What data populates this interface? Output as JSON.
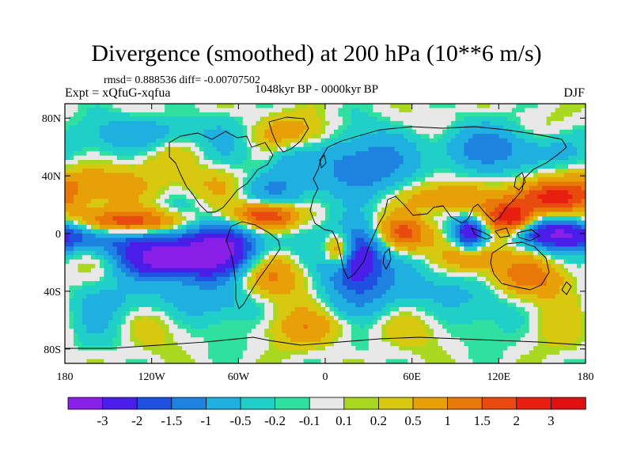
{
  "chart_data": {
    "type": "heatmap",
    "title": "Divergence (smoothed) at 200 hPa (10**6 m/s)",
    "rmsd_text": "rmsd= 0.888536 diff= -0.00707502",
    "experiment": "Expt = xQfuG-xqfua",
    "period": "1048kyr BP - 0000kyr BP",
    "season": "DJF",
    "x_range": [
      -180,
      180
    ],
    "y_range": [
      -90,
      90
    ],
    "x_ticks": [
      {
        "value": -180,
        "label": "180"
      },
      {
        "value": -120,
        "label": "120W"
      },
      {
        "value": -60,
        "label": "60W"
      },
      {
        "value": 0,
        "label": "0"
      },
      {
        "value": 60,
        "label": "60E"
      },
      {
        "value": 120,
        "label": "120E"
      },
      {
        "value": 180,
        "label": "180"
      }
    ],
    "y_ticks": [
      {
        "value": 80,
        "label": "80N"
      },
      {
        "value": 40,
        "label": "40N"
      },
      {
        "value": 0,
        "label": "0"
      },
      {
        "value": -40,
        "label": "40S"
      },
      {
        "value": -80,
        "label": "80S"
      }
    ],
    "levels": [
      -3,
      -2,
      -1.5,
      -1,
      -0.5,
      -0.2,
      -0.1,
      0.1,
      0.2,
      0.5,
      1,
      1.5,
      2,
      3
    ],
    "level_labels": [
      "-3",
      "-2",
      "-1.5",
      "-1",
      "-0.5",
      "-0.2",
      "-0.1",
      "0.1",
      "0.2",
      "0.5",
      "1",
      "1.5",
      "2",
      "3"
    ],
    "colors": [
      "#8a20e8",
      "#4a1ee8",
      "#1f50e0",
      "#1e82e0",
      "#1fb0e0",
      "#20d0c8",
      "#30e0a0",
      "#e8e8e8",
      "#a8d820",
      "#d8c810",
      "#e8a008",
      "#e87808",
      "#e84a10",
      "#e81e10",
      "#e01010"
    ],
    "field_features": [
      {
        "lon": -110,
        "lat": -18,
        "amp": -3.2,
        "rx": 22,
        "ry": 9
      },
      {
        "lon": -72,
        "lat": -10,
        "amp": -3.5,
        "rx": 18,
        "ry": 14
      },
      {
        "lon": 20,
        "lat": -15,
        "amp": -3.5,
        "rx": 14,
        "ry": 15
      },
      {
        "lon": 100,
        "lat": 0,
        "amp": -3.0,
        "rx": 8,
        "ry": 8
      },
      {
        "lon": 160,
        "lat": 0,
        "amp": -2.8,
        "rx": 22,
        "ry": 7
      },
      {
        "lon": -150,
        "lat": -5,
        "amp": -1.4,
        "rx": 25,
        "ry": 7
      },
      {
        "lon": -40,
        "lat": 30,
        "amp": -1.0,
        "rx": 20,
        "ry": 10
      },
      {
        "lon": 30,
        "lat": 45,
        "amp": -1.2,
        "rx": 30,
        "ry": 15
      },
      {
        "lon": -120,
        "lat": 70,
        "amp": -1.0,
        "rx": 25,
        "ry": 8
      },
      {
        "lon": 60,
        "lat": -40,
        "amp": -0.8,
        "rx": 40,
        "ry": 12
      },
      {
        "lon": -100,
        "lat": -45,
        "amp": -0.7,
        "rx": 45,
        "ry": 10
      },
      {
        "lon": 100,
        "lat": 60,
        "amp": -0.8,
        "rx": 30,
        "ry": 10
      },
      {
        "lon": -25,
        "lat": 50,
        "amp": -0.8,
        "rx": 12,
        "ry": 10
      },
      {
        "lon": 150,
        "lat": 55,
        "amp": -0.9,
        "rx": 20,
        "ry": 10
      },
      {
        "lon": -130,
        "lat": 8,
        "amp": 1.8,
        "rx": 30,
        "ry": 6
      },
      {
        "lon": -40,
        "lat": 12,
        "amp": 2.6,
        "rx": 15,
        "ry": 7
      },
      {
        "lon": 10,
        "lat": -12,
        "amp": 2.8,
        "rx": 8,
        "ry": 9
      },
      {
        "lon": 55,
        "lat": 0,
        "amp": 2.0,
        "rx": 14,
        "ry": 9
      },
      {
        "lon": 130,
        "lat": 10,
        "amp": 2.5,
        "rx": 12,
        "ry": 8
      },
      {
        "lon": 155,
        "lat": 25,
        "amp": 2.2,
        "rx": 18,
        "ry": 8
      },
      {
        "lon": 80,
        "lat": 25,
        "amp": 1.2,
        "rx": 20,
        "ry": 8
      },
      {
        "lon": -40,
        "lat": -30,
        "amp": 1.2,
        "rx": 20,
        "ry": 12
      },
      {
        "lon": -160,
        "lat": 35,
        "amp": 1.0,
        "rx": 25,
        "ry": 10
      },
      {
        "lon": 140,
        "lat": -30,
        "amp": 1.3,
        "rx": 20,
        "ry": 10
      },
      {
        "lon": -70,
        "lat": 35,
        "amp": 0.8,
        "rx": 18,
        "ry": 10
      },
      {
        "lon": 100,
        "lat": -15,
        "amp": 1.0,
        "rx": 15,
        "ry": 8
      },
      {
        "lon": -20,
        "lat": 70,
        "amp": 0.6,
        "rx": 20,
        "ry": 8
      },
      {
        "lon": 0,
        "lat": -65,
        "amp": 0.6,
        "rx": 30,
        "ry": 8
      }
    ]
  }
}
